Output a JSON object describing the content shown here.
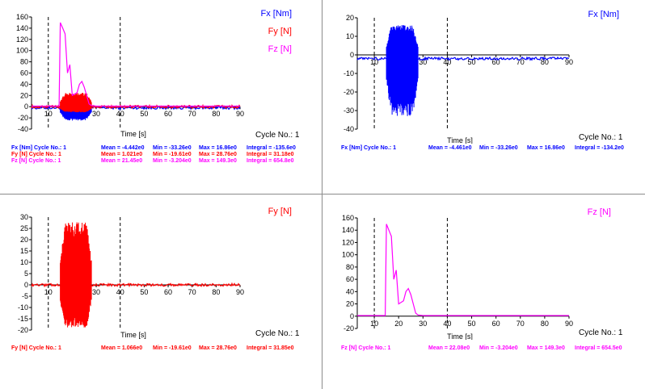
{
  "colors": {
    "fx": "#0000ff",
    "fy": "#ff0000",
    "fz": "#ff00ff",
    "axis": "#000000",
    "cursor": "#000000",
    "separator": "#8c8c8c"
  },
  "charts": [
    {
      "id": "tl",
      "legend": [
        "Fx [Nm]",
        "Fy [N]",
        "Fz [N]"
      ],
      "xlabel": "Time [s]",
      "cycle_label": "Cycle No.: 1",
      "stats": [
        {
          "name": "Fx [Nm] Cycle No.: 1",
          "mean": "Mean = -4.442e0",
          "min": "Min = -33.26e0",
          "max": "Max = 16.86e0",
          "integral": "Integral = -135.6e0",
          "color": "#0000ff"
        },
        {
          "name": "Fy [N] Cycle No.: 1",
          "mean": "Mean = 1.021e0",
          "min": "Min = -19.61e0",
          "max": "Max = 28.76e0",
          "integral": "Integral = 31.18e0",
          "color": "#ff0000"
        },
        {
          "name": "Fz [N] Cycle No.: 1",
          "mean": "Mean = 21.45e0",
          "min": "Min = -3.204e0",
          "max": "Max = 149.3e0",
          "integral": "Integral = 654.8e0",
          "color": "#ff00ff"
        }
      ]
    },
    {
      "id": "tr",
      "legend": [
        "Fx [Nm]"
      ],
      "xlabel": "Time [s]",
      "cycle_label": "Cycle No.: 1",
      "stats": [
        {
          "name": "Fx [Nm] Cycle No.: 1",
          "mean": "Mean = -4.461e0",
          "min": "Min = -33.26e0",
          "max": "Max = 16.86e0",
          "integral": "Integral = -134.2e0",
          "color": "#0000ff"
        }
      ]
    },
    {
      "id": "bl",
      "legend": [
        "Fy [N]"
      ],
      "xlabel": "Time [s]",
      "cycle_label": "Cycle No.: 1",
      "stats": [
        {
          "name": "Fy [N] Cycle No.: 1",
          "mean": "Mean = 1.066e0",
          "min": "Min = -19.61e0",
          "max": "Max = 28.76e0",
          "integral": "Integral = 31.85e0",
          "color": "#ff0000"
        }
      ]
    },
    {
      "id": "br",
      "legend": [
        "Fz [N]"
      ],
      "xlabel": "Time [s]",
      "cycle_label": "Cycle No.: 1",
      "stats": [
        {
          "name": "Fz [N] Cycle No.: 1",
          "mean": "Mean = 22.08e0",
          "min": "Min = -3.204e0",
          "max": "Max = 149.3e0",
          "integral": "Integral = 654.5e0",
          "color": "#ff00ff"
        }
      ]
    }
  ],
  "chart_data": [
    {
      "type": "line",
      "xlabel": "Time [s]",
      "xlim": [
        3,
        90
      ],
      "ylim": [
        -40,
        160
      ],
      "xticks": [
        10,
        20,
        30,
        40,
        50,
        60,
        70,
        80,
        90
      ],
      "yticks": [
        -40,
        -20,
        0,
        20,
        40,
        60,
        80,
        100,
        120,
        140,
        160
      ],
      "cursors": [
        10,
        40
      ],
      "series": [
        {
          "name": "Fx [Nm]",
          "color": "#0000ff",
          "baseline": -2,
          "osc_range": [
            15,
            28
          ],
          "osc_min": -25,
          "osc_max": 8
        },
        {
          "name": "Fy [N]",
          "color": "#ff0000",
          "baseline": 0,
          "osc_range": [
            15,
            28
          ],
          "osc_min": -10,
          "osc_max": 25
        },
        {
          "name": "Fz [N]",
          "color": "#ff00ff",
          "points": [
            [
              3,
              1
            ],
            [
              14.5,
              1
            ],
            [
              15,
              150
            ],
            [
              16,
              140
            ],
            [
              17,
              130
            ],
            [
              18,
              60
            ],
            [
              19,
              75
            ],
            [
              20,
              20
            ],
            [
              22,
              25
            ],
            [
              23,
              40
            ],
            [
              24,
              45
            ],
            [
              25,
              35
            ],
            [
              26,
              20
            ],
            [
              27,
              5
            ],
            [
              28,
              2
            ],
            [
              30,
              1
            ],
            [
              90,
              1
            ]
          ]
        }
      ]
    },
    {
      "type": "line",
      "xlabel": "Time [s]",
      "xlim": [
        3,
        90
      ],
      "ylim": [
        -40,
        20
      ],
      "xticks": [
        10,
        20,
        30,
        40,
        50,
        60,
        70,
        80,
        90
      ],
      "yticks": [
        -40,
        -30,
        -20,
        -10,
        0,
        10,
        20
      ],
      "cursors": [
        10,
        40
      ],
      "series": [
        {
          "name": "Fx [Nm]",
          "color": "#0000ff",
          "baseline": -2,
          "osc_range": [
            15,
            28
          ],
          "osc_min": -33,
          "osc_max": 16
        }
      ]
    },
    {
      "type": "line",
      "xlabel": "Time [s]",
      "xlim": [
        3,
        90
      ],
      "ylim": [
        -20,
        30
      ],
      "xticks": [
        10,
        20,
        30,
        40,
        50,
        60,
        70,
        80,
        90
      ],
      "yticks": [
        -20,
        -15,
        -10,
        -5,
        0,
        5,
        10,
        15,
        20,
        25,
        30
      ],
      "cursors": [
        10,
        40
      ],
      "series": [
        {
          "name": "Fy [N]",
          "color": "#ff0000",
          "baseline": 0,
          "osc_range": [
            15,
            28
          ],
          "osc_min": -19,
          "osc_max": 28
        }
      ]
    },
    {
      "type": "line",
      "xlabel": "Time [s]",
      "xlim": [
        3,
        90
      ],
      "ylim": [
        -20,
        160
      ],
      "xticks": [
        10,
        20,
        30,
        40,
        50,
        60,
        70,
        80,
        90
      ],
      "yticks": [
        -20,
        0,
        20,
        40,
        60,
        80,
        100,
        120,
        140,
        160
      ],
      "cursors": [
        10,
        40
      ],
      "series": [
        {
          "name": "Fz [N]",
          "color": "#ff00ff",
          "points": [
            [
              3,
              1
            ],
            [
              14.5,
              1
            ],
            [
              15,
              150
            ],
            [
              16,
              140
            ],
            [
              17,
              130
            ],
            [
              18,
              60
            ],
            [
              19,
              75
            ],
            [
              20,
              20
            ],
            [
              22,
              25
            ],
            [
              23,
              40
            ],
            [
              24,
              45
            ],
            [
              25,
              35
            ],
            [
              26,
              20
            ],
            [
              27,
              5
            ],
            [
              28,
              2
            ],
            [
              30,
              1
            ],
            [
              90,
              1
            ]
          ]
        }
      ]
    }
  ]
}
